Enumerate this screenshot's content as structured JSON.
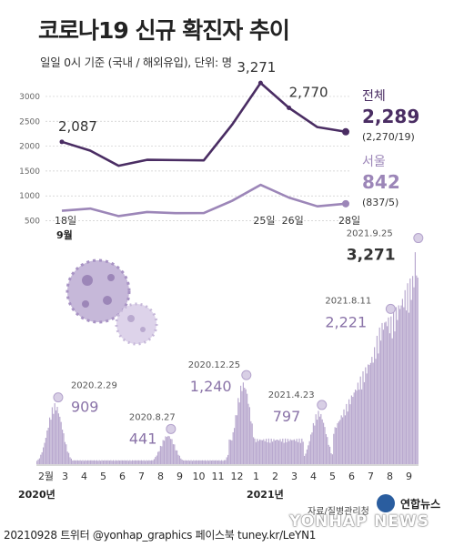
{
  "title": "코로나19 신규 확진자 추이",
  "subtitle": "일일 0시 기준 (국내 / 해외유입), 단위: 명",
  "footer": "20210928 트위터 @yonhap_graphics  페이스북 tuney.kr/LeYN1",
  "source": "자료/질병관리청",
  "agency": "연합뉴스",
  "watermark": "YONHAP NEWS",
  "colors": {
    "total": "#4a2d63",
    "seoul": "#9c86b8",
    "bars": "#b9a9cf",
    "grid": "#cccccc"
  },
  "chart_data": [
    {
      "type": "line",
      "x_labels": [
        "18일",
        "25일",
        "26일",
        "28일"
      ],
      "x_month": "9월",
      "y_ticks": [
        500,
        1000,
        1500,
        2000,
        2500,
        3000
      ],
      "ylim": [
        400,
        3200
      ],
      "grid": true,
      "series": [
        {
          "name": "전체",
          "values": [
            2087,
            1910,
            1605,
            1725,
            1720,
            1715,
            2434,
            3271,
            2770,
            2383,
            2289
          ],
          "last_value": "2,289",
          "last_detail": "(2,270/19)"
        },
        {
          "name": "서울",
          "values": [
            700,
            745,
            593,
            676,
            652,
            655,
            902,
            1222,
            965,
            790,
            842
          ],
          "last_value": "842",
          "last_detail": "(837/5)"
        }
      ],
      "annotations": [
        {
          "index": 0,
          "label": "2,087"
        },
        {
          "index": 7,
          "label": "3,271"
        },
        {
          "index": 8,
          "label": "2,770"
        }
      ]
    },
    {
      "type": "bar",
      "x_ticks": [
        "2월",
        "3",
        "4",
        "5",
        "6",
        "7",
        "8",
        "9",
        "10",
        "11",
        "12",
        "1",
        "2",
        "3",
        "4",
        "5",
        "6",
        "7",
        "8",
        "9"
      ],
      "years": [
        "2020년",
        "2021년"
      ],
      "ylim": [
        0,
        3400
      ],
      "grid": false,
      "peaks": [
        {
          "date": "2020.2.29",
          "value": 909,
          "label": "909"
        },
        {
          "date": "2020.8.27",
          "value": 441,
          "label": "441"
        },
        {
          "date": "2020.12.25",
          "value": 1240,
          "label": "1,240"
        },
        {
          "date": "2021.4.23",
          "value": 797,
          "label": "797"
        },
        {
          "date": "2021.8.11",
          "value": 2221,
          "label": "2,221"
        },
        {
          "date": "2021.9.25",
          "value": 3271,
          "label": "3,271"
        }
      ]
    }
  ]
}
